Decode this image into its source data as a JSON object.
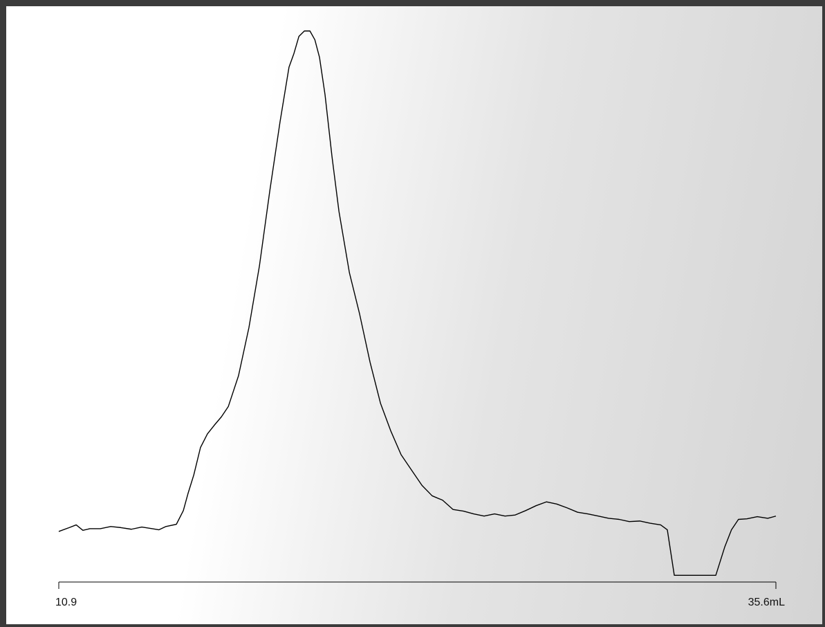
{
  "chart_data": {
    "type": "line",
    "xlim": [
      10.9,
      35.6
    ],
    "xticks": [
      10.9,
      {
        "value": 35.6,
        "label": "35.6mL"
      }
    ],
    "ylim": [
      0,
      101
    ],
    "color": "#000000",
    "x": [
      10.9,
      11.26,
      11.5,
      11.73,
      11.97,
      12.33,
      12.69,
      13.04,
      13.4,
      13.76,
      14.12,
      14.35,
      14.59,
      14.95,
      15.19,
      15.35,
      15.55,
      15.78,
      16.02,
      16.26,
      16.5,
      16.74,
      17.09,
      17.45,
      17.81,
      18.17,
      18.52,
      18.83,
      19.0,
      19.17,
      19.36,
      19.55,
      19.72,
      19.88,
      20.07,
      20.31,
      20.55,
      20.91,
      21.26,
      21.62,
      21.98,
      22.33,
      22.69,
      23.05,
      23.41,
      23.76,
      24.12,
      24.48,
      24.84,
      25.19,
      25.55,
      25.91,
      26.27,
      26.62,
      26.98,
      27.34,
      27.7,
      28.05,
      28.41,
      28.77,
      29.12,
      29.48,
      29.84,
      30.2,
      30.55,
      30.91,
      31.27,
      31.63,
      31.86,
      32.1,
      33.53,
      33.84,
      34.07,
      34.31,
      34.6,
      34.96,
      35.32,
      35.6
    ],
    "values": [
      9.1,
      9.8,
      10.3,
      9.3,
      9.6,
      9.6,
      10.0,
      9.8,
      9.5,
      9.9,
      9.6,
      9.4,
      10.0,
      10.4,
      12.9,
      16.0,
      19.4,
      24.4,
      26.9,
      28.5,
      30.0,
      31.9,
      37.5,
      46.3,
      57.5,
      71.3,
      83.8,
      93.8,
      96.3,
      99.4,
      100.4,
      100.4,
      98.8,
      95.6,
      88.8,
      77.5,
      67.5,
      56.3,
      48.8,
      40.0,
      32.5,
      27.5,
      23.1,
      20.3,
      17.5,
      15.6,
      14.8,
      13.1,
      12.8,
      12.3,
      11.9,
      12.3,
      11.9,
      12.1,
      12.9,
      13.8,
      14.5,
      14.1,
      13.4,
      12.6,
      12.3,
      11.9,
      11.5,
      11.3,
      10.9,
      11.0,
      10.6,
      10.3,
      9.4,
      1.1,
      1.1,
      6.3,
      9.4,
      11.3,
      11.4,
      11.8,
      11.5,
      11.9
    ]
  }
}
